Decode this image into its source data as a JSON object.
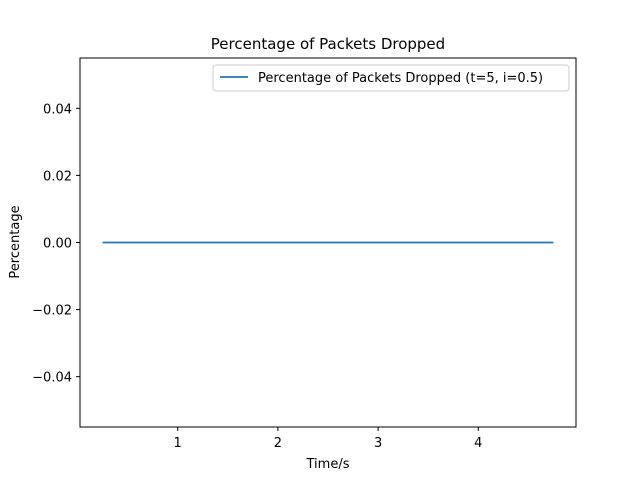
{
  "chart_data": {
    "type": "line",
    "title": "Percentage of Packets Dropped",
    "xlabel": "Time/s",
    "ylabel": "Percentage",
    "xlim": [
      0.025,
      4.975
    ],
    "ylim": [
      -0.055,
      0.055
    ],
    "xticks": [
      1,
      2,
      3,
      4
    ],
    "xtick_labels": [
      "1",
      "2",
      "3",
      "4"
    ],
    "yticks": [
      -0.04,
      -0.02,
      0.0,
      0.02,
      0.04
    ],
    "ytick_labels": [
      "−0.04",
      "−0.02",
      "0.00",
      "0.02",
      "0.04"
    ],
    "grid": false,
    "legend_position": "top-right",
    "series": [
      {
        "name": "Percentage of Packets Dropped (t=5, i=0.5)",
        "color": "#1f77b4",
        "x": [
          0.25,
          0.75,
          1.25,
          1.75,
          2.25,
          2.75,
          3.25,
          3.75,
          4.25,
          4.75
        ],
        "y": [
          0,
          0,
          0,
          0,
          0,
          0,
          0,
          0,
          0,
          0
        ]
      }
    ]
  }
}
